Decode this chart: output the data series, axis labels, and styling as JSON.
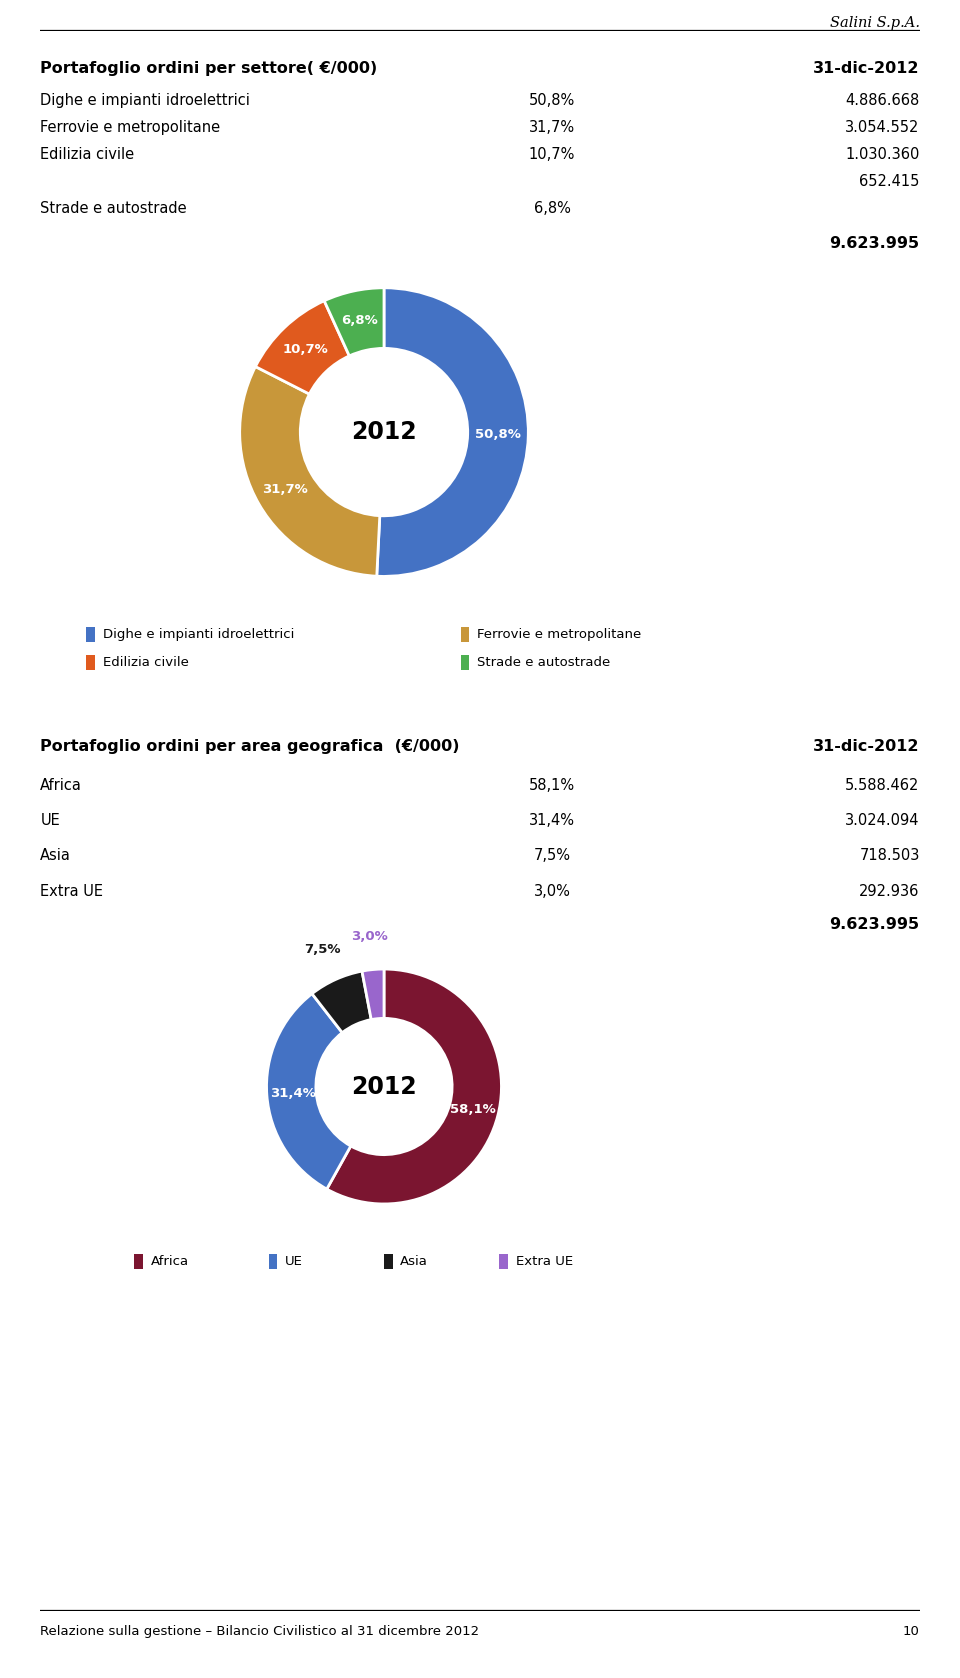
{
  "company": "Salini S.p.A.",
  "section1_title": "Portafoglio ordini per settore( €/000)",
  "section1_date": "31-dic-2012",
  "sector_labels": [
    "Dighe e impianti idroelettrici",
    "Ferrovie e metropolitane",
    "Edilizia civile",
    "Strade e autostrade"
  ],
  "sector_pcts": [
    "50,8%",
    "31,7%",
    "10,7%",
    "6,8%"
  ],
  "sector_values": [
    "4.886.668",
    "3.054.552",
    "1.030.360",
    "652.415"
  ],
  "sector_total": "9.623.995",
  "sector_floats": [
    50.8,
    31.7,
    10.7,
    6.8
  ],
  "sector_colors": [
    "#4472C4",
    "#C8973A",
    "#E05A1E",
    "#4CAF50"
  ],
  "pie1_label_pcts": [
    "50,8%",
    "31,7%",
    "10,7%",
    "6,8%"
  ],
  "pie1_center_text": "2012",
  "section2_title": "Portafoglio ordini per area geografica  (€/000)",
  "section2_date": "31-dic-2012",
  "geo_labels": [
    "Africa",
    "UE",
    "Asia",
    "Extra UE"
  ],
  "geo_pcts": [
    "58,1%",
    "31,4%",
    "7,5%",
    "3,0%"
  ],
  "geo_values": [
    "5.588.462",
    "3.024.094",
    "718.503",
    "292.936"
  ],
  "geo_total": "9.623.995",
  "geo_floats": [
    58.1,
    31.4,
    7.5,
    3.0
  ],
  "geo_colors": [
    "#7B1530",
    "#4472C4",
    "#1A1A1A",
    "#9966CC"
  ],
  "pie2_label_pcts": [
    "58,1%",
    "31,4%",
    "7,5%",
    "3,0%"
  ],
  "pie2_center_text": "2012",
  "footer_text": "Relazione sulla gestione – Bilancio Civilistico al 31 dicembre 2012",
  "footer_page": "10"
}
